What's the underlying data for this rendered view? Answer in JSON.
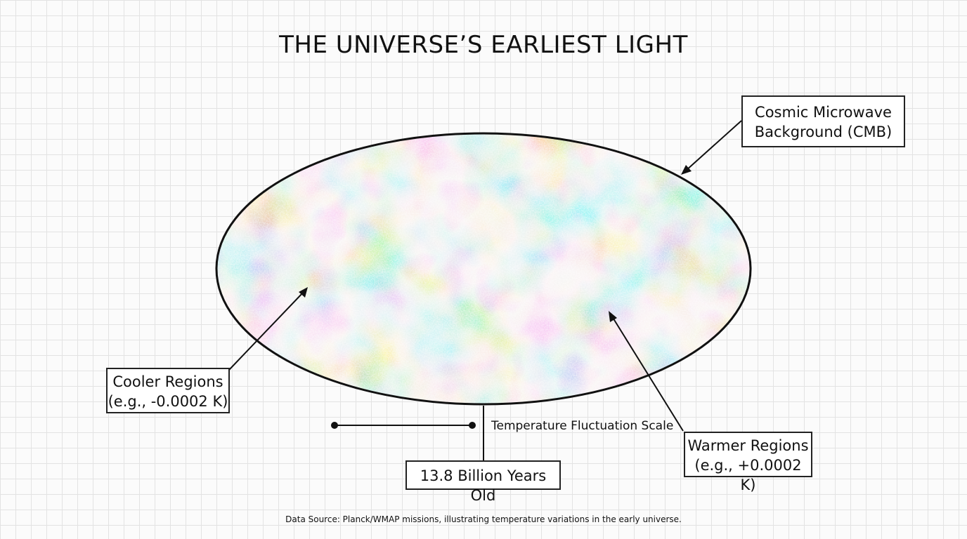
{
  "title": "THE UNIVERSE’S EARLIEST LIGHT",
  "callouts": {
    "cmb": {
      "line1": "Cosmic Microwave",
      "line2": "Background (CMB)"
    },
    "cooler": {
      "line1": "Cooler Regions",
      "line2": "(e.g., -0.0002 K)"
    },
    "warmer": {
      "line1": "Warmer Regions",
      "line2": "(e.g., +0.0002 K)"
    },
    "age": "13.8 Billion Years Old"
  },
  "scale_label": "Temperature Fluctuation Scale",
  "footer": "Data Source: Planck/WMAP missions, illustrating temperature variations in the early universe.",
  "colors": {
    "cool": "#2f7fd0",
    "cool_light": "#8fc0e8",
    "warm": "#e8963a",
    "warm_light": "#f0c98f",
    "neutral": "#f3ead8",
    "outline": "#111111"
  }
}
